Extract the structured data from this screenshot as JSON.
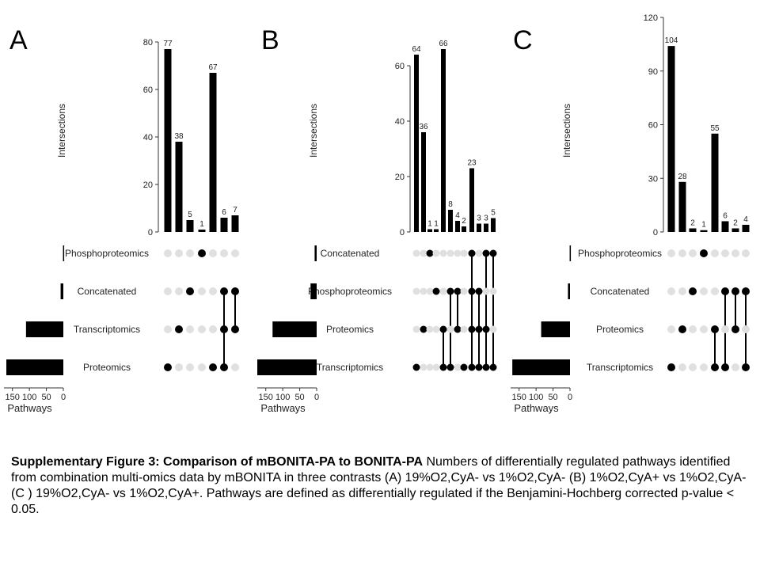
{
  "caption": {
    "bold": "Supplementary Figure 3: Comparison of mBONITA-PA to BONITA-PA",
    "text": " Numbers of differentially regulated pathways identified from combination multi-omics data by mBONITA in three contrasts (A) 19%O2,CyA- vs 1%O2,CyA- (B) 1%O2,CyA+ vs 1%O2,CyA-  (C ) 19%O2,CyA- vs 1%O2,CyA+. Pathways are defined as differentially regulated if the Benjamini-Hochberg corrected p-value < 0.05."
  },
  "colors": {
    "bar": "#000000",
    "dot_on": "#000000",
    "dot_off": "#e0e0e0",
    "axis": "#333333"
  },
  "chart_data": [
    {
      "type": "bar",
      "panel": "A",
      "ylabel": "Intersections",
      "xlabel_sets": "Pathways",
      "ylim": [
        0,
        86
      ],
      "yticks": [
        0,
        20,
        40,
        60,
        80
      ],
      "values": [
        77,
        38,
        5,
        1,
        67,
        6,
        7
      ],
      "sets": [
        "Phosphoproteomics",
        "Concatenated",
        "Transcriptomics",
        "Proteomics"
      ],
      "set_size_ticks": [
        "150",
        "100",
        "50",
        "0"
      ],
      "set_sizes": [
        1,
        8,
        110,
        168
      ],
      "set_max": 175,
      "membership": [
        [
          3
        ],
        [
          2
        ],
        [
          1
        ],
        [
          0
        ],
        [
          3
        ],
        [
          1,
          2,
          3
        ],
        [
          1,
          2
        ]
      ]
    },
    {
      "type": "bar",
      "panel": "B",
      "ylabel": "Intersections",
      "xlabel_sets": "Pathways",
      "ylim": [
        0,
        70
      ],
      "yticks": [
        0,
        20,
        40,
        60
      ],
      "values": [
        64,
        36,
        1,
        1,
        66,
        8,
        4,
        2,
        23,
        3,
        3,
        5
      ],
      "sets": [
        "Concatenated",
        "Phosphoproteomics",
        "Proteomics",
        "Transcriptomics"
      ],
      "set_size_ticks": [
        "150",
        "100",
        "50",
        "0"
      ],
      "set_sizes": [
        6,
        18,
        130,
        175
      ],
      "set_max": 175,
      "membership": [
        [
          3
        ],
        [
          2
        ],
        [
          0
        ],
        [
          1
        ],
        [
          2,
          3
        ],
        [
          1,
          3
        ],
        [
          1,
          2
        ],
        [
          3
        ],
        [
          0,
          1,
          2,
          3
        ],
        [
          1,
          2,
          3
        ],
        [
          0,
          2,
          3
        ],
        [
          0,
          3
        ]
      ]
    },
    {
      "type": "bar",
      "panel": "C",
      "ylabel": "Intersections",
      "xlabel_sets": "Pathways",
      "ylim": [
        0,
        120
      ],
      "yticks": [
        0,
        30,
        60,
        90,
        120
      ],
      "values": [
        104,
        28,
        2,
        1,
        55,
        6,
        2,
        4
      ],
      "sets": [
        "Phosphoproteomics",
        "Concatenated",
        "Proteomics",
        "Transcriptomics"
      ],
      "set_size_ticks": [
        "150",
        "100",
        "50",
        "0"
      ],
      "set_sizes": [
        1,
        6,
        85,
        170
      ],
      "set_max": 175,
      "membership": [
        [
          3
        ],
        [
          2
        ],
        [
          1
        ],
        [
          0
        ],
        [
          2,
          3
        ],
        [
          1,
          3
        ],
        [
          1,
          2
        ],
        [
          1,
          3
        ]
      ]
    }
  ]
}
